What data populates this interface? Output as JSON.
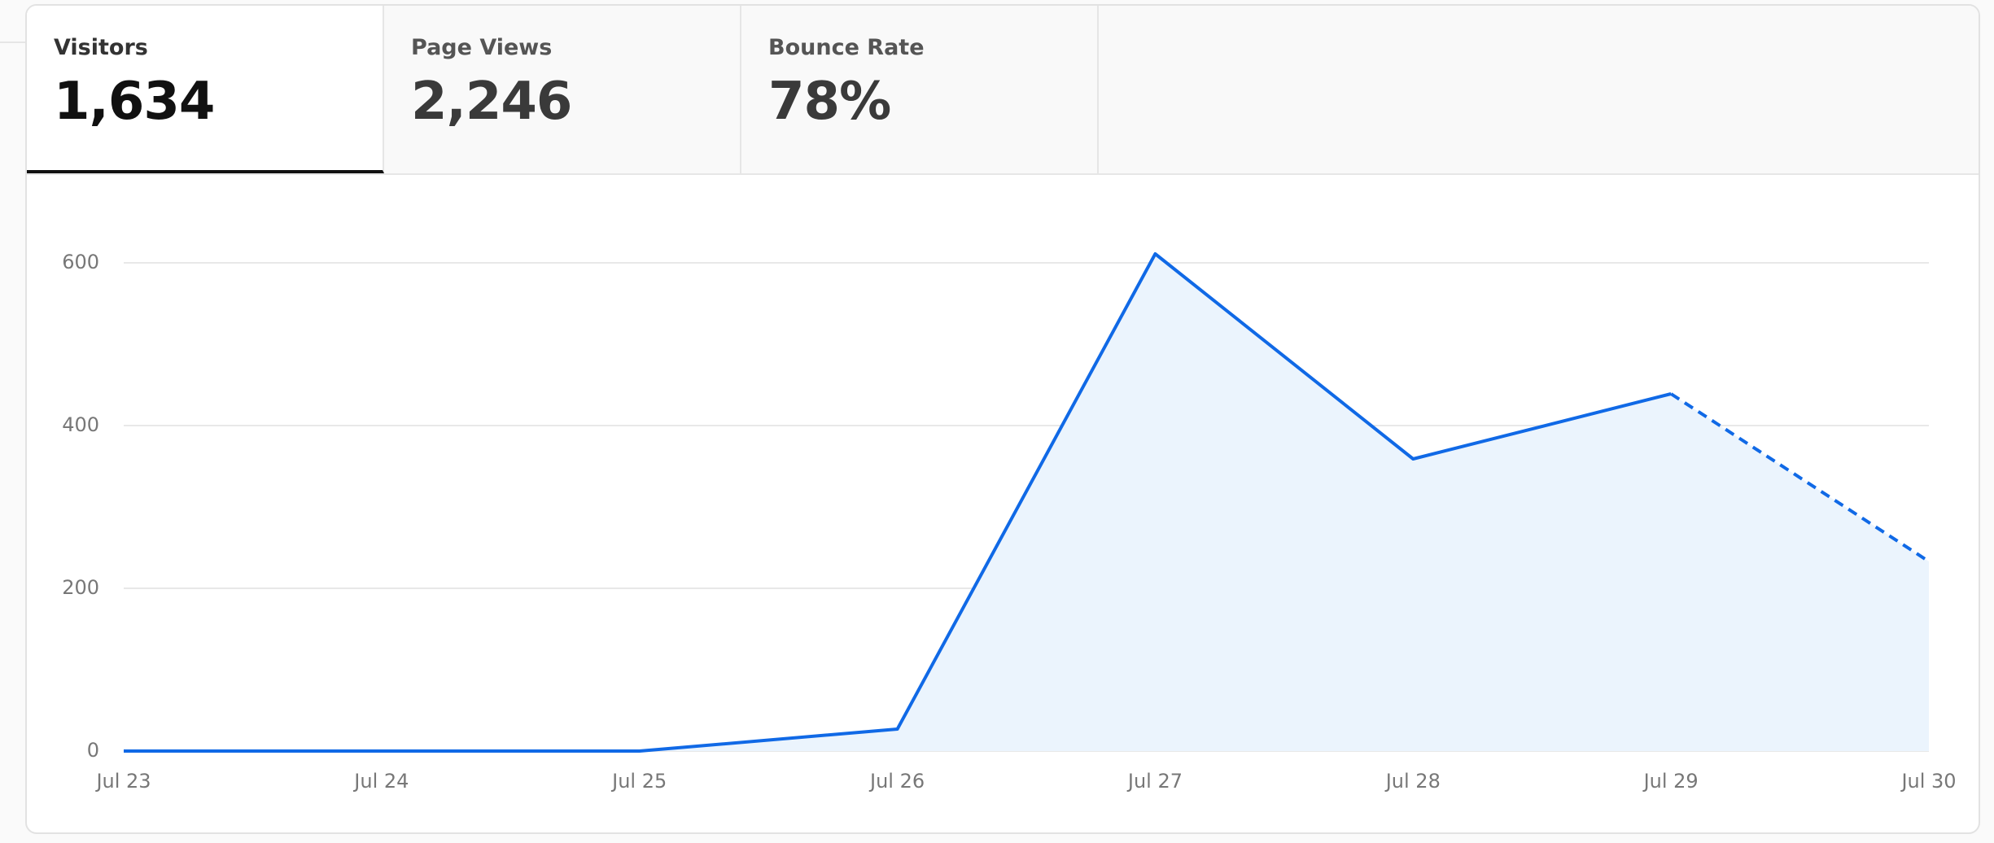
{
  "tabs": [
    {
      "label": "Visitors",
      "value": "1,634",
      "selected": true
    },
    {
      "label": "Page Views",
      "value": "2,246",
      "selected": false
    },
    {
      "label": "Bounce Rate",
      "value": "78%",
      "selected": false
    }
  ],
  "chart_data": {
    "type": "line",
    "categories": [
      "Jul 23",
      "Jul 24",
      "Jul 25",
      "Jul 26",
      "Jul 27",
      "Jul 28",
      "Jul 29",
      "Jul 30"
    ],
    "series": [
      {
        "name": "Visitors",
        "color": "#1069e6",
        "values": [
          0,
          0,
          0,
          27,
          611,
          359,
          439,
          233
        ]
      }
    ],
    "area_color": "#ebf4fd",
    "dashed_last_segment": true,
    "ylim": [
      0,
      650
    ],
    "yticks": [
      0,
      200,
      400,
      600
    ],
    "grid": true
  }
}
